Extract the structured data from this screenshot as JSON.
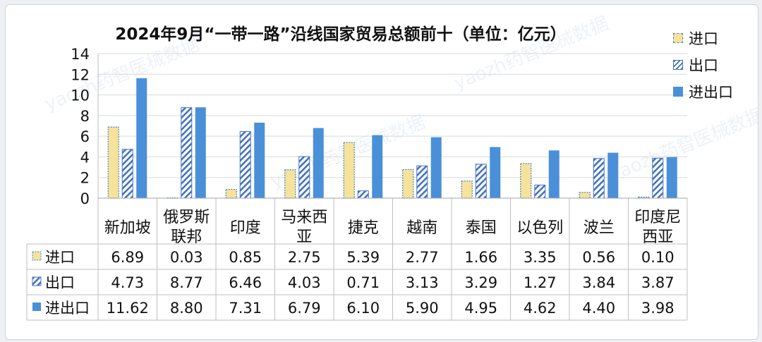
{
  "chart_data": {
    "type": "bar",
    "title": "2024年9月“一带一路”沿线国家贸易总额前十（单位：亿元）",
    "categories": [
      "新加坡",
      "俄罗斯联邦",
      "印度",
      "马来西亚",
      "捷克",
      "越南",
      "泰国",
      "以色列",
      "波兰",
      "印度尼西亚"
    ],
    "series": [
      {
        "name": "进口",
        "values": [
          6.89,
          0.03,
          0.85,
          2.75,
          5.39,
          2.77,
          1.66,
          3.35,
          0.56,
          0.1
        ],
        "labels": [
          "6.89",
          "0.03",
          "0.85",
          "2.75",
          "5.39",
          "2.77",
          "1.66",
          "3.35",
          "0.56",
          "0.10"
        ],
        "color": "#f6e29b",
        "edge": "#3f88c5"
      },
      {
        "name": "出口",
        "values": [
          4.73,
          8.77,
          6.46,
          4.03,
          0.71,
          3.13,
          3.29,
          1.27,
          3.84,
          3.87
        ],
        "labels": [
          "4.73",
          "8.77",
          "6.46",
          "4.03",
          "0.71",
          "3.13",
          "3.29",
          "1.27",
          "3.84",
          "3.87"
        ],
        "color": "#4472c4"
      },
      {
        "name": "进出口",
        "values": [
          11.62,
          8.8,
          7.31,
          6.79,
          6.1,
          5.9,
          4.95,
          4.62,
          4.4,
          3.98
        ],
        "labels": [
          "11.62",
          "8.80",
          "7.31",
          "6.79",
          "6.10",
          "5.90",
          "4.95",
          "4.62",
          "4.40",
          "3.98"
        ],
        "color": "#4a90d9"
      }
    ],
    "category_lines": [
      [
        "新加坡"
      ],
      [
        "俄罗斯",
        "联邦"
      ],
      [
        "印度"
      ],
      [
        "马来西",
        "亚"
      ],
      [
        "捷克"
      ],
      [
        "越南"
      ],
      [
        "泰国"
      ],
      [
        "以色列"
      ],
      [
        "波兰"
      ],
      [
        "印度尼",
        "西亚"
      ]
    ],
    "y_ticks": [
      0,
      2,
      4,
      6,
      8,
      10,
      12,
      14
    ],
    "ylim": [
      0,
      14
    ],
    "grid": true,
    "legend_position": "top-right",
    "data_table": true
  },
  "watermark_text": "yaozh药智医械数据"
}
